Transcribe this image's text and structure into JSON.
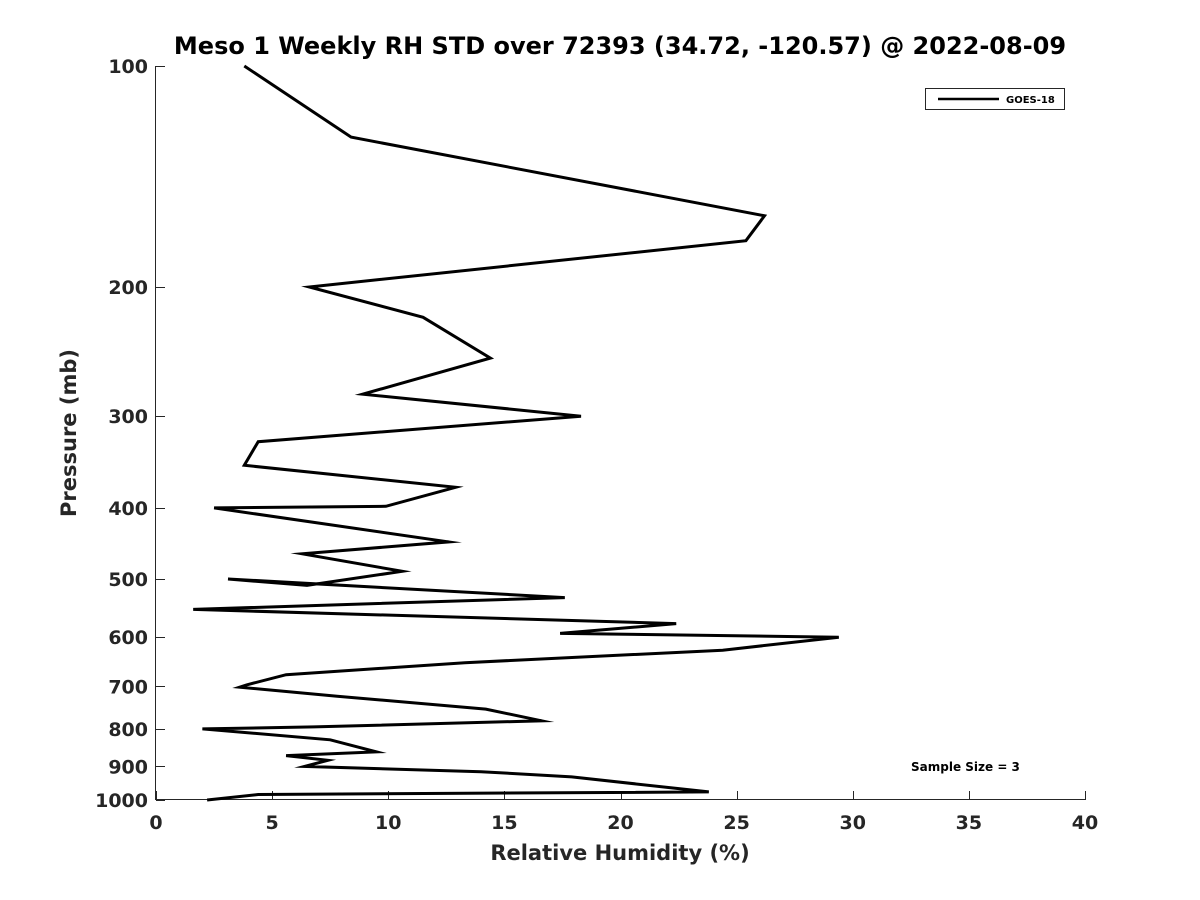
{
  "chart_data": {
    "type": "line",
    "title": "Meso 1 Weekly RH STD over 72393 (34.72, -120.57) @ 2022-08-09",
    "xlabel": "Relative Humidity (%)",
    "ylabel": "Pressure (mb)",
    "xlim": [
      0,
      40
    ],
    "ylim": [
      1000,
      100
    ],
    "yscale": "log",
    "y_reversed": true,
    "grid": false,
    "xticks": [
      0,
      5,
      10,
      15,
      20,
      25,
      30,
      35,
      40
    ],
    "yticks": [
      100,
      200,
      300,
      400,
      500,
      600,
      700,
      800,
      900,
      1000
    ],
    "legend_position": "top-right",
    "annotation": "Sample Size = 3",
    "series": [
      {
        "name": "GOES-18",
        "color": "#000000",
        "x": [
          3.8,
          8.4,
          26.2,
          25.4,
          6.6,
          11.5,
          14.4,
          8.9,
          18.3,
          4.4,
          3.8,
          12.9,
          9.9,
          2.5,
          12.6,
          6.3,
          10.6,
          6.5,
          3.1,
          17.6,
          1.6,
          22.4,
          17.4,
          29.4,
          24.4,
          13.3,
          5.6,
          3.9,
          3.6,
          7.8,
          14.2,
          16.6,
          6.8,
          2.0,
          7.5,
          9.5,
          5.6,
          7.4,
          6.4,
          14.0,
          17.9,
          23.8,
          4.4,
          2.2
        ],
        "y": [
          100,
          125,
          160,
          173,
          200,
          220,
          250,
          280,
          300,
          325,
          350,
          375,
          398,
          400,
          445,
          462,
          488,
          510,
          500,
          530,
          550,
          575,
          593,
          600,
          625,
          650,
          675,
          697,
          702,
          722,
          752,
          780,
          795,
          800,
          828,
          860,
          870,
          883,
          900,
          915,
          930,
          975,
          983,
          1000
        ]
      }
    ]
  }
}
